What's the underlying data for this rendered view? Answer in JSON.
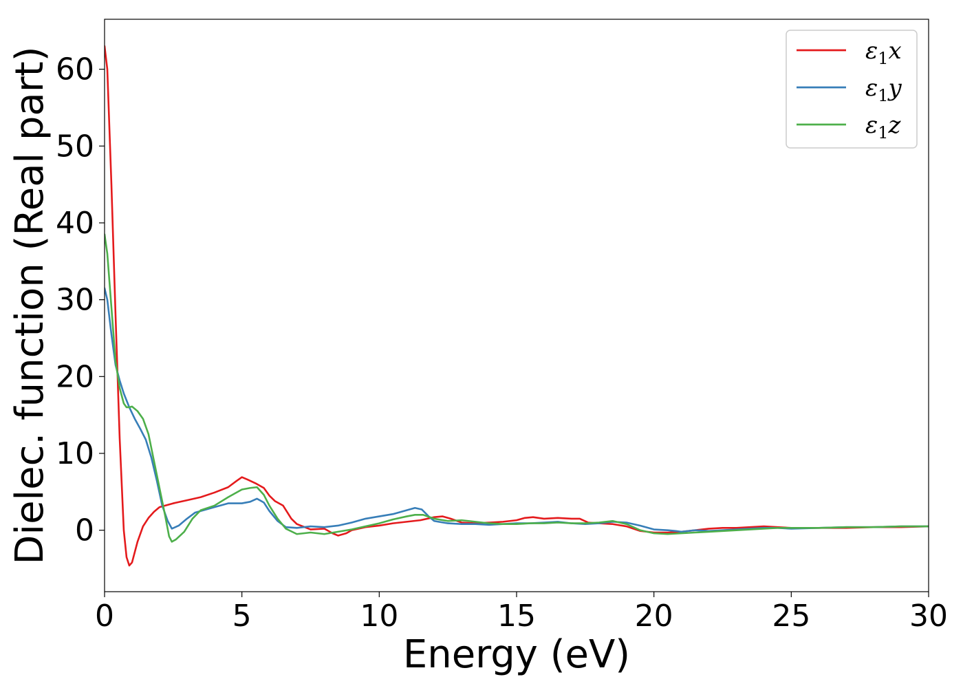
{
  "chart_data": {
    "type": "line",
    "xlabel": "Energy (eV)",
    "ylabel": "Dielec. function (Real part)",
    "xlim": [
      0,
      30
    ],
    "ylim": [
      -8,
      66.5
    ],
    "xticks": [
      0,
      5,
      10,
      15,
      20,
      25,
      30
    ],
    "yticks": [
      0,
      10,
      20,
      30,
      40,
      50,
      60
    ],
    "grid": false,
    "legend_position": "top-right",
    "legend_entries": [
      {
        "base": "ε",
        "sub": "1",
        "var": "x"
      },
      {
        "base": "ε",
        "sub": "1",
        "var": "y"
      },
      {
        "base": "ε",
        "sub": "1",
        "var": "z"
      }
    ],
    "series": [
      {
        "color": "#e41a1c",
        "points": [
          [
            0,
            63
          ],
          [
            0.1,
            60
          ],
          [
            0.25,
            45
          ],
          [
            0.4,
            28
          ],
          [
            0.55,
            12
          ],
          [
            0.7,
            0
          ],
          [
            0.8,
            -3.5
          ],
          [
            0.9,
            -4.6
          ],
          [
            1.0,
            -4.2
          ],
          [
            1.2,
            -1.5
          ],
          [
            1.4,
            0.5
          ],
          [
            1.6,
            1.6
          ],
          [
            1.8,
            2.4
          ],
          [
            2.0,
            3.0
          ],
          [
            2.5,
            3.5
          ],
          [
            3.0,
            3.9
          ],
          [
            3.5,
            4.3
          ],
          [
            4.0,
            4.9
          ],
          [
            4.5,
            5.6
          ],
          [
            4.8,
            6.4
          ],
          [
            5.0,
            6.9
          ],
          [
            5.2,
            6.6
          ],
          [
            5.5,
            6.1
          ],
          [
            5.8,
            5.5
          ],
          [
            6.0,
            4.5
          ],
          [
            6.2,
            3.8
          ],
          [
            6.5,
            3.2
          ],
          [
            6.8,
            1.5
          ],
          [
            7.0,
            0.8
          ],
          [
            7.5,
            0.1
          ],
          [
            8.0,
            0.2
          ],
          [
            8.3,
            -0.4
          ],
          [
            8.5,
            -0.7
          ],
          [
            8.8,
            -0.4
          ],
          [
            9.0,
            0
          ],
          [
            9.5,
            0.4
          ],
          [
            10.0,
            0.6
          ],
          [
            10.5,
            0.9
          ],
          [
            11.0,
            1.1
          ],
          [
            11.5,
            1.3
          ],
          [
            12.0,
            1.7
          ],
          [
            12.3,
            1.8
          ],
          [
            12.6,
            1.5
          ],
          [
            13.0,
            1.0
          ],
          [
            13.5,
            0.9
          ],
          [
            14.0,
            1.0
          ],
          [
            14.5,
            1.1
          ],
          [
            15.0,
            1.3
          ],
          [
            15.3,
            1.6
          ],
          [
            15.6,
            1.7
          ],
          [
            16.0,
            1.5
          ],
          [
            16.5,
            1.6
          ],
          [
            17.0,
            1.5
          ],
          [
            17.3,
            1.5
          ],
          [
            17.6,
            1.0
          ],
          [
            18.0,
            0.9
          ],
          [
            18.5,
            0.8
          ],
          [
            19.0,
            0.5
          ],
          [
            19.5,
            -0.1
          ],
          [
            20.0,
            -0.3
          ],
          [
            20.5,
            -0.3
          ],
          [
            21.0,
            -0.2
          ],
          [
            21.5,
            0
          ],
          [
            22.0,
            0.2
          ],
          [
            22.5,
            0.3
          ],
          [
            23.0,
            0.3
          ],
          [
            23.5,
            0.4
          ],
          [
            24.0,
            0.5
          ],
          [
            24.5,
            0.4
          ],
          [
            25.0,
            0.3
          ],
          [
            25.5,
            0.3
          ],
          [
            26.0,
            0.3
          ],
          [
            27.0,
            0.3
          ],
          [
            28.0,
            0.4
          ],
          [
            29.0,
            0.4
          ],
          [
            30.0,
            0.5
          ]
        ]
      },
      {
        "color": "#377eb8",
        "points": [
          [
            0,
            31.5
          ],
          [
            0.1,
            30
          ],
          [
            0.25,
            25.5
          ],
          [
            0.4,
            21.5
          ],
          [
            0.55,
            19.5
          ],
          [
            0.7,
            17.8
          ],
          [
            0.9,
            16.0
          ],
          [
            1.1,
            14.5
          ],
          [
            1.3,
            13.2
          ],
          [
            1.5,
            11.8
          ],
          [
            1.7,
            9.5
          ],
          [
            1.9,
            6.5
          ],
          [
            2.1,
            3.2
          ],
          [
            2.3,
            1.2
          ],
          [
            2.45,
            0.2
          ],
          [
            2.7,
            0.6
          ],
          [
            3.0,
            1.5
          ],
          [
            3.3,
            2.3
          ],
          [
            3.6,
            2.6
          ],
          [
            4.0,
            3.0
          ],
          [
            4.5,
            3.5
          ],
          [
            5.0,
            3.5
          ],
          [
            5.3,
            3.7
          ],
          [
            5.55,
            4.1
          ],
          [
            5.8,
            3.6
          ],
          [
            6.0,
            2.5
          ],
          [
            6.3,
            1.2
          ],
          [
            6.6,
            0.4
          ],
          [
            7.0,
            0.3
          ],
          [
            7.5,
            0.5
          ],
          [
            8.0,
            0.4
          ],
          [
            8.5,
            0.6
          ],
          [
            9.0,
            1.0
          ],
          [
            9.5,
            1.5
          ],
          [
            10.0,
            1.8
          ],
          [
            10.5,
            2.1
          ],
          [
            11.0,
            2.6
          ],
          [
            11.3,
            2.9
          ],
          [
            11.55,
            2.7
          ],
          [
            11.8,
            1.8
          ],
          [
            12.0,
            1.2
          ],
          [
            12.5,
            0.9
          ],
          [
            13.0,
            0.8
          ],
          [
            13.5,
            0.8
          ],
          [
            14.0,
            0.7
          ],
          [
            14.5,
            0.8
          ],
          [
            15.0,
            0.9
          ],
          [
            15.5,
            0.9
          ],
          [
            16.0,
            1.0
          ],
          [
            16.5,
            1.1
          ],
          [
            17.0,
            0.9
          ],
          [
            17.5,
            0.8
          ],
          [
            18.0,
            0.9
          ],
          [
            18.5,
            1.1
          ],
          [
            19.0,
            1.0
          ],
          [
            19.5,
            0.6
          ],
          [
            20.0,
            0.1
          ],
          [
            20.5,
            0
          ],
          [
            20.8,
            -0.1
          ],
          [
            21.0,
            -0.2
          ],
          [
            21.5,
            0
          ],
          [
            22.0,
            -0.1
          ],
          [
            22.5,
            0
          ],
          [
            23.0,
            0.1
          ],
          [
            23.5,
            0.2
          ],
          [
            24.0,
            0.3
          ],
          [
            24.5,
            0.3
          ],
          [
            25.0,
            0.2
          ],
          [
            26.0,
            0.3
          ],
          [
            27.0,
            0.4
          ],
          [
            28.0,
            0.4
          ],
          [
            29.0,
            0.5
          ],
          [
            30.0,
            0.5
          ]
        ]
      },
      {
        "color": "#4daf4a",
        "points": [
          [
            0,
            38.5
          ],
          [
            0.1,
            36
          ],
          [
            0.25,
            29
          ],
          [
            0.4,
            22
          ],
          [
            0.55,
            18.5
          ],
          [
            0.7,
            16.5
          ],
          [
            0.8,
            16
          ],
          [
            0.9,
            16.0
          ],
          [
            1.0,
            16.1
          ],
          [
            1.2,
            15.5
          ],
          [
            1.4,
            14.5
          ],
          [
            1.6,
            12.5
          ],
          [
            1.8,
            9.0
          ],
          [
            2.0,
            5.5
          ],
          [
            2.2,
            2.0
          ],
          [
            2.35,
            -0.8
          ],
          [
            2.45,
            -1.5
          ],
          [
            2.6,
            -1.2
          ],
          [
            2.9,
            -0.2
          ],
          [
            3.2,
            1.5
          ],
          [
            3.5,
            2.6
          ],
          [
            4.0,
            3.2
          ],
          [
            4.5,
            4.3
          ],
          [
            5.0,
            5.3
          ],
          [
            5.3,
            5.5
          ],
          [
            5.55,
            5.6
          ],
          [
            5.8,
            4.6
          ],
          [
            6.0,
            3.2
          ],
          [
            6.3,
            1.5
          ],
          [
            6.6,
            0.2
          ],
          [
            7.0,
            -0.5
          ],
          [
            7.5,
            -0.3
          ],
          [
            8.0,
            -0.5
          ],
          [
            8.5,
            -0.2
          ],
          [
            9.0,
            0.1
          ],
          [
            9.5,
            0.5
          ],
          [
            10.0,
            0.9
          ],
          [
            10.5,
            1.4
          ],
          [
            11.0,
            1.8
          ],
          [
            11.3,
            2.0
          ],
          [
            11.6,
            2.0
          ],
          [
            12.0,
            1.5
          ],
          [
            12.5,
            1.2
          ],
          [
            13.0,
            1.3
          ],
          [
            13.5,
            1.1
          ],
          [
            14.0,
            0.9
          ],
          [
            14.5,
            0.8
          ],
          [
            15.0,
            0.8
          ],
          [
            15.5,
            0.9
          ],
          [
            16.0,
            0.9
          ],
          [
            16.5,
            1.0
          ],
          [
            17.0,
            0.9
          ],
          [
            17.5,
            0.9
          ],
          [
            18.0,
            1.0
          ],
          [
            18.5,
            1.2
          ],
          [
            19.0,
            0.8
          ],
          [
            19.5,
            0
          ],
          [
            20.0,
            -0.4
          ],
          [
            20.5,
            -0.5
          ],
          [
            21.0,
            -0.4
          ],
          [
            21.5,
            -0.3
          ],
          [
            22.0,
            -0.2
          ],
          [
            22.5,
            -0.1
          ],
          [
            23.0,
            0
          ],
          [
            23.5,
            0.1
          ],
          [
            24.0,
            0.2
          ],
          [
            24.5,
            0.3
          ],
          [
            25.0,
            0.3
          ],
          [
            26.0,
            0.3
          ],
          [
            27.0,
            0.4
          ],
          [
            28.0,
            0.4
          ],
          [
            29.0,
            0.5
          ],
          [
            30.0,
            0.5
          ]
        ]
      }
    ]
  }
}
